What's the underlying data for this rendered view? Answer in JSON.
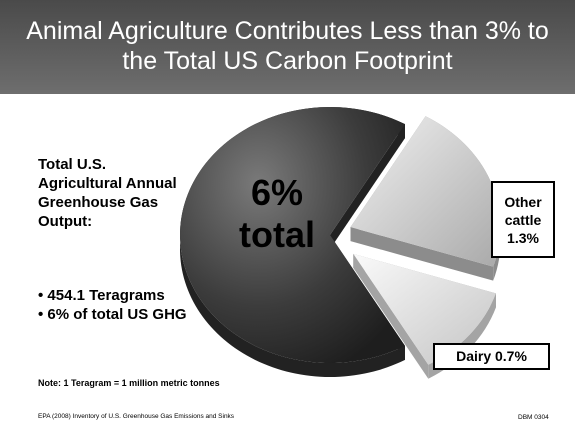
{
  "title": "Animal Agriculture Contributes Less than 3% to the Total US Carbon Footprint",
  "left_text": {
    "heading": "Total U.S. Agricultural Annual Greenhouse Gas Output:",
    "bullets": [
      "• 454.1 Teragrams",
      "• 6% of total US GHG"
    ]
  },
  "note": "Note: 1 Teragram = 1 million metric tonnes",
  "source": "EPA (2008) Inventory of U.S. Greenhouse Gas Emissions and Sinks",
  "slide_code": "DBM 0304",
  "chart_data": {
    "type": "pie",
    "title": "",
    "slices": [
      {
        "label": "6% total",
        "value": 4.0,
        "unit": "%",
        "color": "#4a4a4a"
      },
      {
        "label": "Other cattle 1.3%",
        "value": 1.3,
        "unit": "%",
        "color": "#cfcfcf"
      },
      {
        "label": "Dairy 0.7%",
        "value": 0.7,
        "unit": "%",
        "color": "#e6e6e6"
      }
    ],
    "center_label": {
      "line1": "6%",
      "line2": "total"
    },
    "callouts": {
      "other": {
        "line1": "Other",
        "line2": "cattle",
        "line3": "1.3%"
      },
      "dairy": "Dairy 0.7%"
    },
    "style": "3d-exploded"
  }
}
